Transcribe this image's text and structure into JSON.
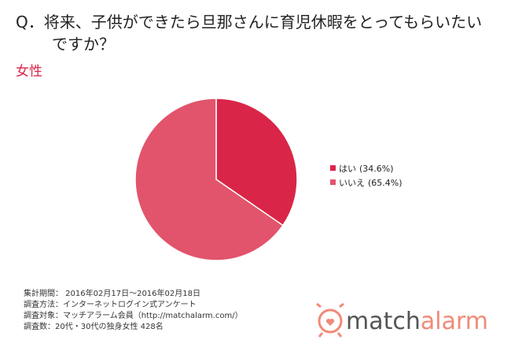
{
  "chart_data": {
    "type": "pie",
    "title": "Q．将来、子供ができたら旦那さんに育児休暇をとってもらいたいですか？",
    "subtitle": "女性",
    "categories": [
      "はい",
      "いいえ"
    ],
    "values": [
      34.6,
      65.4
    ],
    "value_labels": [
      "(34.6%)",
      "(65.4%)"
    ],
    "colors": [
      "#d92648",
      "#e2546b"
    ],
    "legend": "right",
    "notes": [
      "集計期間： 2016年02月17日～2016年02月18日",
      "調査方法：インターネットログイン式アンケート",
      "調査対象：マッチアラーム会員（http://matchalarm.com/）",
      "調査数：20代・30代の独身女性 428名"
    ],
    "logo": [
      "match",
      "alarm"
    ]
  }
}
